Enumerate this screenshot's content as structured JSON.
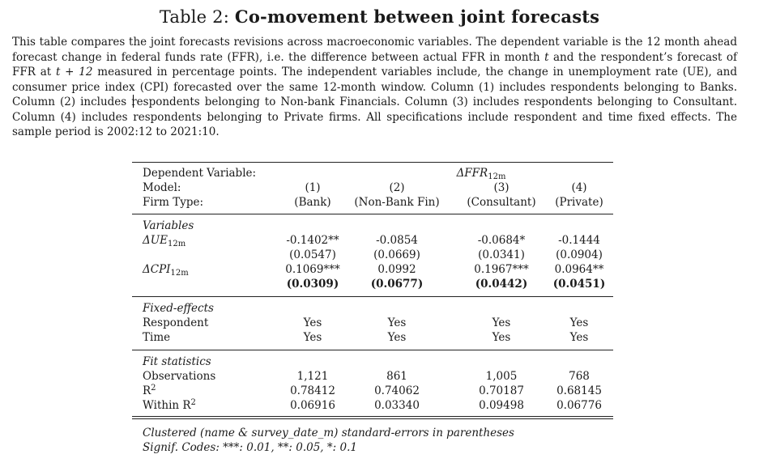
{
  "title": {
    "label": "Table 2:",
    "text": "Co-movement between joint forecasts"
  },
  "caption": {
    "p1": "This table compares the joint forecasts revisions across macroeconomic variables. The dependent variable is the 12 month ahead forecast change in federal funds rate (FFR), i.e. the difference between actual FFR in month ",
    "v_t": "t",
    "p2": " and the respondent’s forecast of FFR at ",
    "v_t12": "t + 12",
    "p3": " measured in percentage points. The independent variables include, the change in unemployment rate (UE), and consumer price index (CPI) forecasted over the same 12-month window. Column (1) includes respondents belonging to Banks. Column (2) includes respondents belonging to Non-bank Financials. Column (3) includes respondents belonging to Consultant. Column (4) includes respondents belonging to Private firms. All specifications include respondent and time fixed effects. The sample period is 2002:12 to 2021:10."
  },
  "table": {
    "header": {
      "dep_label": "Dependent Variable:",
      "dep_var_main": "ΔFFR",
      "dep_var_sub": "12m",
      "model_label": "Model:",
      "models": [
        "(1)",
        "(2)",
        "(3)",
        "(4)"
      ],
      "firm_label": "Firm Type:",
      "firms": [
        "(Bank)",
        "(Non-Bank Fin)",
        "(Consultant)",
        "(Private)"
      ]
    },
    "variables_heading": "Variables",
    "ue": {
      "main": "ΔUE",
      "sub": "12m",
      "coef": [
        "-0.1402**",
        "-0.0854",
        "-0.0684*",
        "-0.1444"
      ],
      "se": [
        "(0.0547)",
        "(0.0669)",
        "(0.0341)",
        "(0.0904)"
      ]
    },
    "cpi": {
      "main": "ΔCPI",
      "sub": "12m",
      "coef": [
        "0.1069***",
        "0.0992",
        "0.1967***",
        "0.0964**"
      ],
      "se": [
        "(0.0309)",
        "(0.0677)",
        "(0.0442)",
        "(0.0451)"
      ]
    },
    "fixed_heading": "Fixed-effects",
    "respondent": {
      "label": "Respondent",
      "values": [
        "Yes",
        "Yes",
        "Yes",
        "Yes"
      ]
    },
    "time": {
      "label": "Time",
      "values": [
        "Yes",
        "Yes",
        "Yes",
        "Yes"
      ]
    },
    "fit_heading": "Fit statistics",
    "obs": {
      "label": "Observations",
      "values": [
        "1,121",
        "861",
        "1,005",
        "768"
      ]
    },
    "r2": {
      "label_main": "R",
      "label_sup": "2",
      "values": [
        "0.78412",
        "0.74062",
        "0.70187",
        "0.68145"
      ]
    },
    "wr2": {
      "label_main": "Within R",
      "label_sup": "2",
      "values": [
        "0.06916",
        "0.03340",
        "0.09498",
        "0.06776"
      ]
    },
    "notes": [
      "Clustered (name & survey_date_m) standard-errors in parentheses",
      "Signif. Codes: ***: 0.01, **: 0.05, *: 0.1"
    ]
  }
}
